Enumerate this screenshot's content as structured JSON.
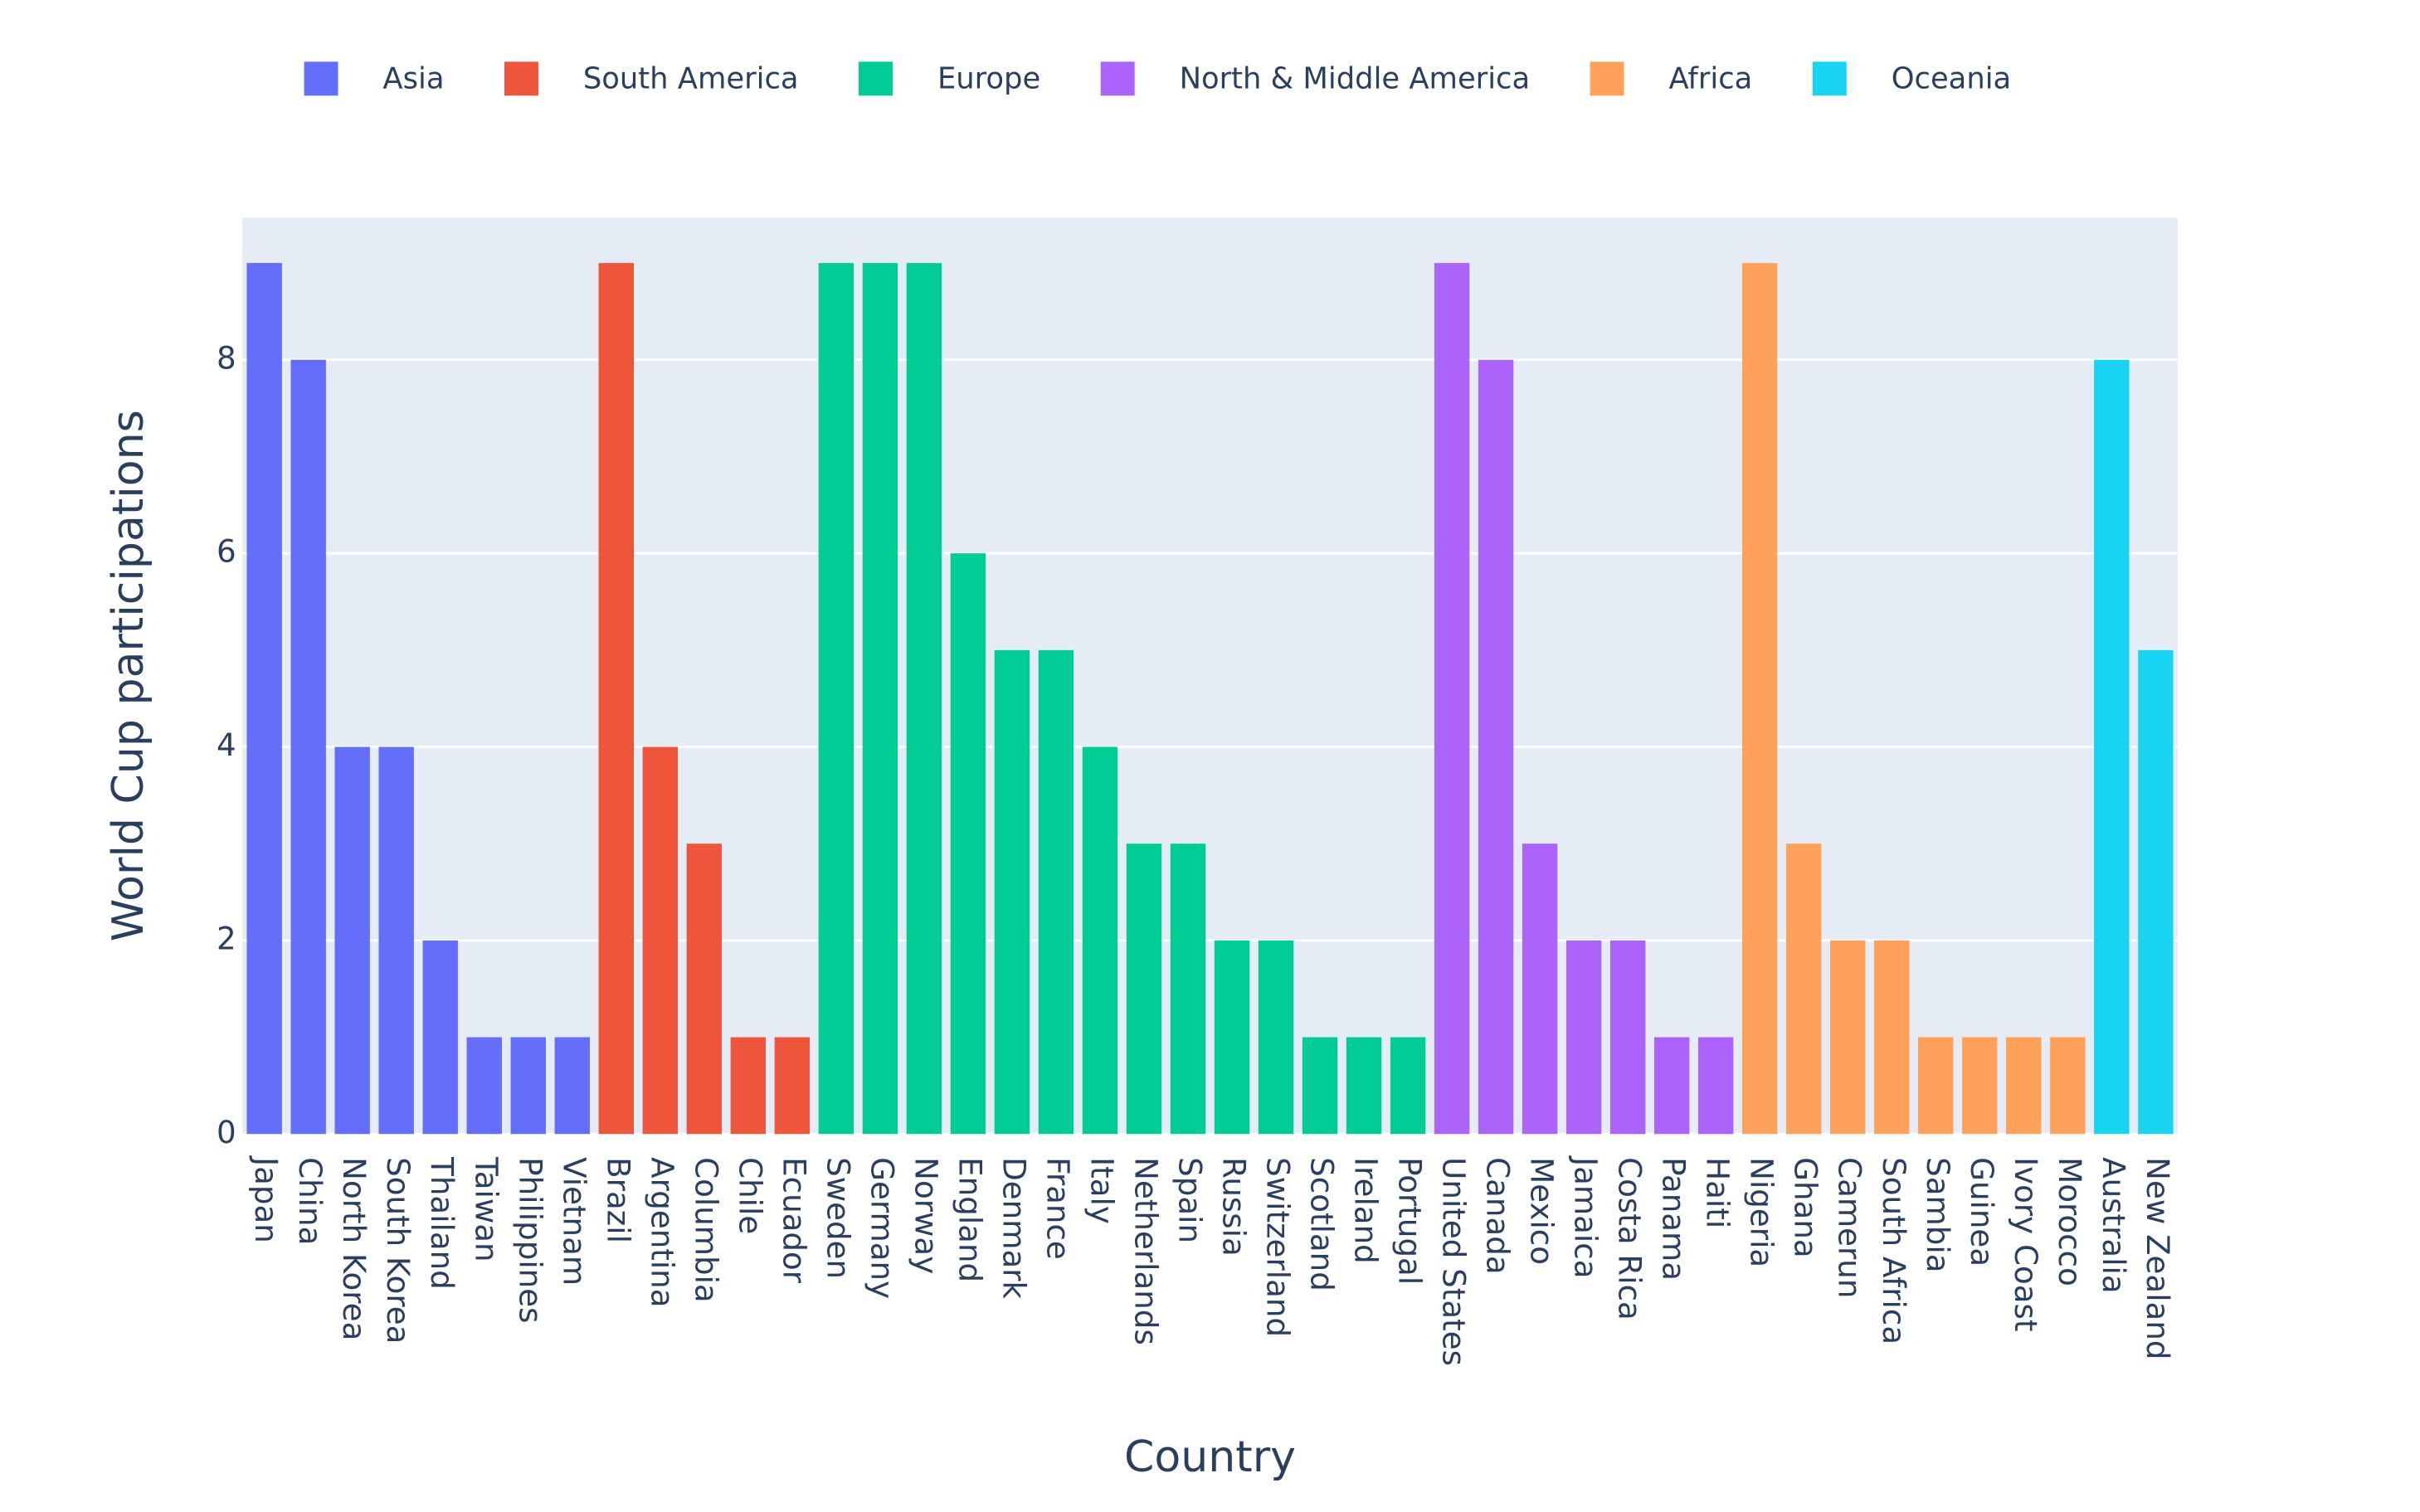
{
  "chart_data": {
    "type": "bar",
    "y_label": "World Cup participations",
    "x_label": "Country",
    "categories": [
      "Japan",
      "China",
      "North Korea",
      "South Korea",
      "Thailand",
      "Taiwan",
      "Philippines",
      "Vietnam",
      "Brazil",
      "Argentina",
      "Columbia",
      "Chile",
      "Ecuador",
      "Sweden",
      "Germany",
      "Norway",
      "England",
      "Denmark",
      "France",
      "Italy",
      "Netherlands",
      "Spain",
      "Russia",
      "Switzerland",
      "Scotland",
      "Ireland",
      "Portugal",
      "United States",
      "Canada",
      "Mexico",
      "Jamaica",
      "Costa Rica",
      "Panama",
      "Haiti",
      "Nigeria",
      "Ghana",
      "Camerun",
      "South Africa",
      "Sambia",
      "Guinea",
      "Ivory Coast",
      "Morocco",
      "Australia",
      "New Zealand"
    ],
    "series": [
      {
        "name": "Asia",
        "color": "#636efa",
        "values": [
          9,
          8,
          4,
          4,
          2,
          1,
          1,
          1,
          null,
          null,
          null,
          null,
          null,
          null,
          null,
          null,
          null,
          null,
          null,
          null,
          null,
          null,
          null,
          null,
          null,
          null,
          null,
          null,
          null,
          null,
          null,
          null,
          null,
          null,
          null,
          null,
          null,
          null,
          null,
          null,
          null,
          null,
          null,
          null
        ]
      },
      {
        "name": "South America",
        "color": "#ef553b",
        "values": [
          null,
          null,
          null,
          null,
          null,
          null,
          null,
          null,
          9,
          4,
          3,
          1,
          1,
          null,
          null,
          null,
          null,
          null,
          null,
          null,
          null,
          null,
          null,
          null,
          null,
          null,
          null,
          null,
          null,
          null,
          null,
          null,
          null,
          null,
          null,
          null,
          null,
          null,
          null,
          null,
          null,
          null,
          null,
          null
        ]
      },
      {
        "name": "Europe",
        "color": "#00cc96",
        "values": [
          null,
          null,
          null,
          null,
          null,
          null,
          null,
          null,
          null,
          null,
          null,
          null,
          null,
          9,
          9,
          9,
          6,
          5,
          5,
          4,
          3,
          3,
          2,
          2,
          1,
          1,
          1,
          null,
          null,
          null,
          null,
          null,
          null,
          null,
          null,
          null,
          null,
          null,
          null,
          null,
          null,
          null,
          null,
          null
        ]
      },
      {
        "name": "North & Middle America",
        "color": "#ab63fa",
        "values": [
          null,
          null,
          null,
          null,
          null,
          null,
          null,
          null,
          null,
          null,
          null,
          null,
          null,
          null,
          null,
          null,
          null,
          null,
          null,
          null,
          null,
          null,
          null,
          null,
          null,
          null,
          null,
          9,
          8,
          3,
          2,
          2,
          1,
          1,
          null,
          null,
          null,
          null,
          null,
          null,
          null,
          null,
          null,
          null
        ]
      },
      {
        "name": "Africa",
        "color": "#ffa15a",
        "values": [
          null,
          null,
          null,
          null,
          null,
          null,
          null,
          null,
          null,
          null,
          null,
          null,
          null,
          null,
          null,
          null,
          null,
          null,
          null,
          null,
          null,
          null,
          null,
          null,
          null,
          null,
          null,
          null,
          null,
          null,
          null,
          null,
          null,
          null,
          9,
          3,
          2,
          2,
          1,
          1,
          1,
          1,
          null,
          null
        ]
      },
      {
        "name": "Oceania",
        "color": "#19d3f3",
        "values": [
          null,
          null,
          null,
          null,
          null,
          null,
          null,
          null,
          null,
          null,
          null,
          null,
          null,
          null,
          null,
          null,
          null,
          null,
          null,
          null,
          null,
          null,
          null,
          null,
          null,
          null,
          null,
          null,
          null,
          null,
          null,
          null,
          null,
          null,
          null,
          null,
          null,
          null,
          null,
          null,
          null,
          null,
          8,
          5
        ]
      }
    ],
    "ylim": [
      0,
      9.47
    ],
    "yticks": [
      0,
      2,
      4,
      6,
      8
    ],
    "grid": true,
    "legend": "top"
  }
}
